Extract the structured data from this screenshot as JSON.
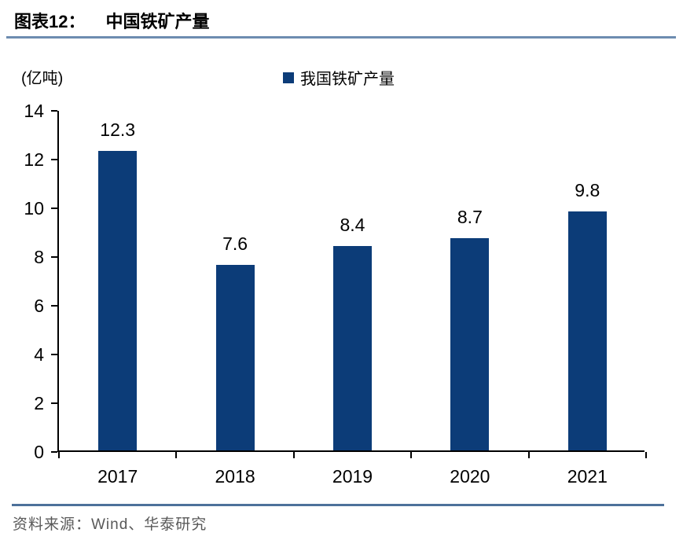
{
  "figure": {
    "label": "图表12：",
    "title": "中国铁矿产量"
  },
  "unit_label": "(亿吨)",
  "legend": {
    "marker": "square-icon",
    "label": "我国铁矿产量"
  },
  "chart_data": {
    "type": "bar",
    "title": "中国铁矿产量",
    "categories": [
      "2017",
      "2018",
      "2019",
      "2020",
      "2021"
    ],
    "series": [
      {
        "name": "我国铁矿产量",
        "values": [
          12.3,
          7.6,
          8.4,
          8.7,
          9.8
        ]
      }
    ],
    "value_labels": [
      "12.3",
      "7.6",
      "8.4",
      "8.7",
      "9.8"
    ],
    "xlabel": "",
    "ylabel": "(亿吨)",
    "ylim": [
      0,
      14
    ],
    "yticks": [
      0,
      2,
      4,
      6,
      8,
      10,
      12,
      14
    ],
    "grid": false,
    "legend_position": "top-center",
    "bar_color": "#0c3c78"
  },
  "footer": {
    "source": "资料来源：Wind、华泰研究"
  },
  "colors": {
    "bar": "#0c3c78",
    "axis": "#000000",
    "title_rule": "#6d8cb0",
    "footer_rule": "#4d719b",
    "source_text": "#595959"
  }
}
